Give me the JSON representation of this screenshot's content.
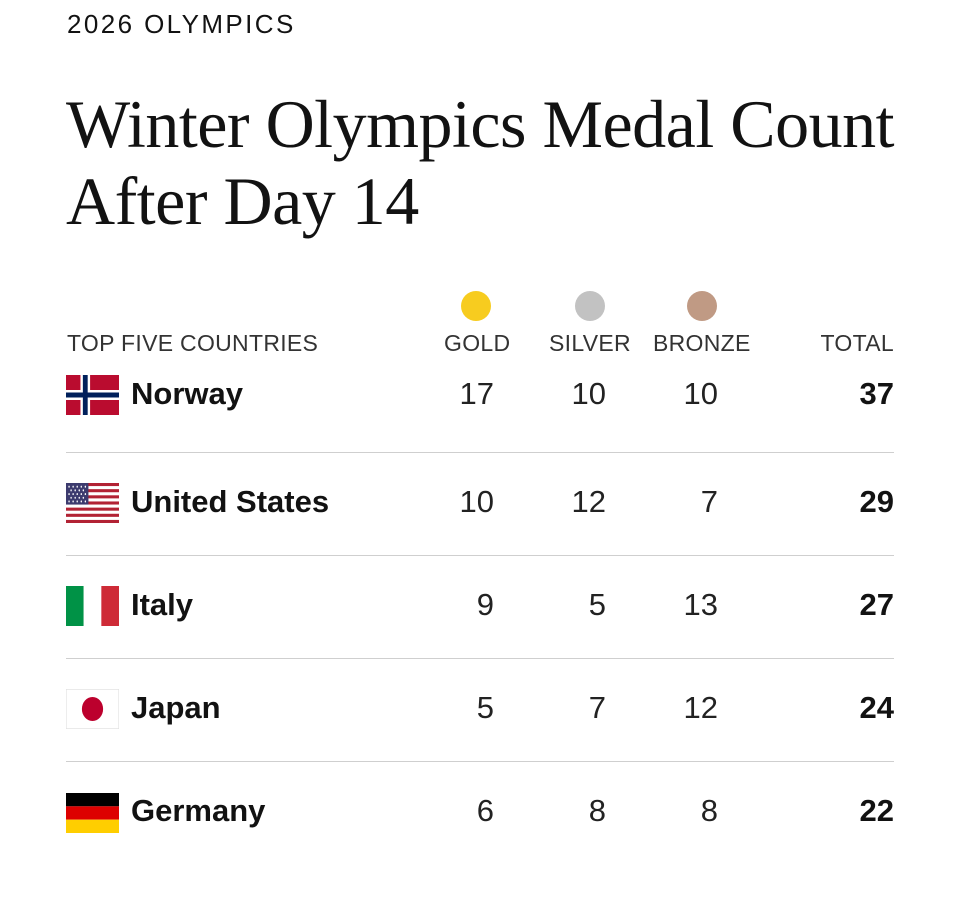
{
  "kicker": "2026 OLYMPICS",
  "headline": "Winter Olympics Medal Count After Day 14",
  "table": {
    "columns": {
      "country": "TOP FIVE COUNTRIES",
      "gold": "GOLD",
      "silver": "SILVER",
      "bronze": "BRONZE",
      "total": "TOTAL"
    },
    "medal_colors": {
      "gold": "#f7cc1f",
      "silver": "#c2c2c2",
      "bronze": "#c09a84"
    },
    "rows": [
      {
        "country": "Norway",
        "flag": "norway-flag",
        "gold": "17",
        "silver": "10",
        "bronze": "10",
        "total": "37"
      },
      {
        "country": "United States",
        "flag": "united-states-flag",
        "gold": "10",
        "silver": "12",
        "bronze": "7",
        "total": "29"
      },
      {
        "country": "Italy",
        "flag": "italy-flag",
        "gold": "9",
        "silver": "5",
        "bronze": "13",
        "total": "27"
      },
      {
        "country": "Japan",
        "flag": "japan-flag",
        "gold": "5",
        "silver": "7",
        "bronze": "12",
        "total": "24"
      },
      {
        "country": "Germany",
        "flag": "germany-flag",
        "gold": "6",
        "silver": "8",
        "bronze": "8",
        "total": "22"
      }
    ]
  }
}
